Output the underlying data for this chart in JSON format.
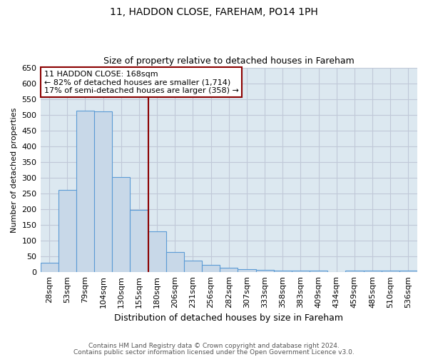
{
  "title1": "11, HADDON CLOSE, FAREHAM, PO14 1PH",
  "title2": "Size of property relative to detached houses in Fareham",
  "xlabel": "Distribution of detached houses by size in Fareham",
  "ylabel": "Number of detached properties",
  "categories": [
    "28sqm",
    "53sqm",
    "79sqm",
    "104sqm",
    "130sqm",
    "155sqm",
    "180sqm",
    "206sqm",
    "231sqm",
    "256sqm",
    "282sqm",
    "307sqm",
    "333sqm",
    "358sqm",
    "383sqm",
    "409sqm",
    "434sqm",
    "459sqm",
    "485sqm",
    "510sqm",
    "536sqm"
  ],
  "values": [
    30,
    262,
    512,
    510,
    303,
    197,
    130,
    65,
    37,
    22,
    15,
    9,
    7,
    5,
    4,
    5,
    1,
    5,
    4,
    5,
    5
  ],
  "bar_color": "#c8d8e8",
  "bar_edge_color": "#5b9bd5",
  "grid_color": "#c0c8d8",
  "background_color": "#dce8f0",
  "vline_color": "#8b0000",
  "annotation_line1": "11 HADDON CLOSE: 168sqm",
  "annotation_line2": "← 82% of detached houses are smaller (1,714)",
  "annotation_line3": "17% of semi-detached houses are larger (358) →",
  "annotation_box_color": "#ffffff",
  "annotation_box_edge": "#8b0000",
  "footer1": "Contains HM Land Registry data © Crown copyright and database right 2024.",
  "footer2": "Contains public sector information licensed under the Open Government Licence v3.0.",
  "ylim": [
    0,
    650
  ],
  "yticks": [
    0,
    50,
    100,
    150,
    200,
    250,
    300,
    350,
    400,
    450,
    500,
    550,
    600,
    650
  ],
  "vline_x_idx": 5.5
}
